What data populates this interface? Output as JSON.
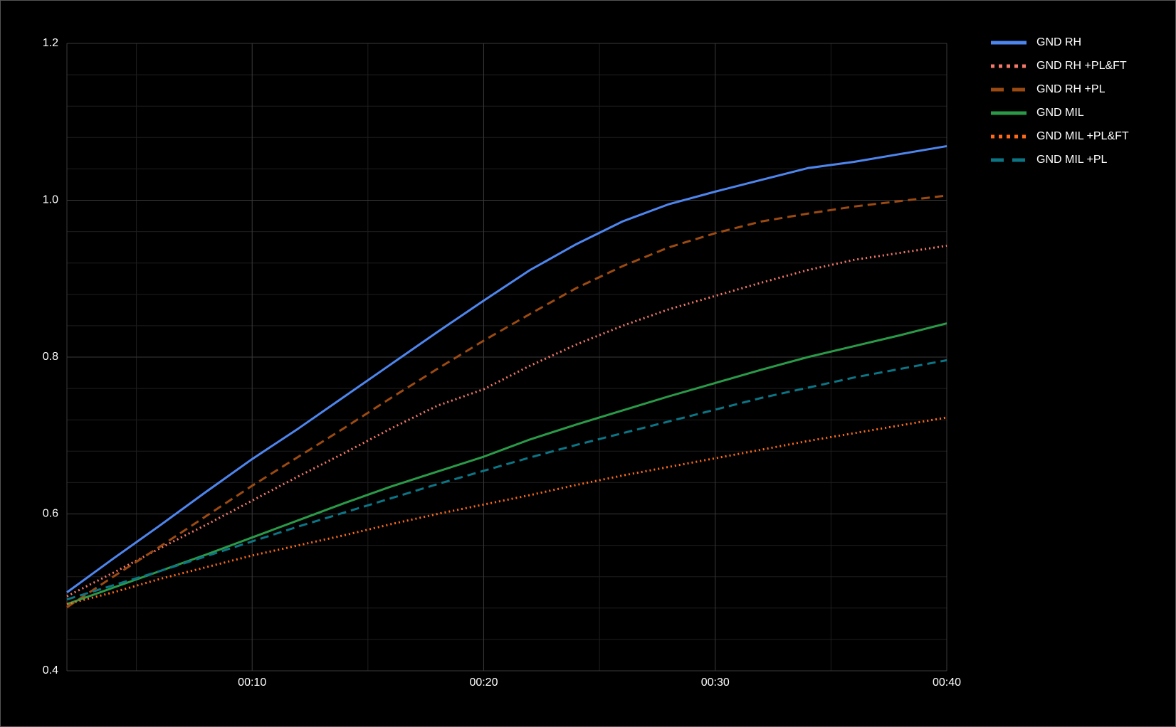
{
  "chart_data": {
    "type": "line",
    "x": [
      2,
      4,
      6,
      8,
      10,
      12,
      14,
      16,
      18,
      20,
      22,
      24,
      26,
      28,
      30,
      32,
      34,
      36,
      38,
      40
    ],
    "xlim": [
      2,
      40
    ],
    "xticks": [
      {
        "value": 10,
        "label": "00:10"
      },
      {
        "value": 20,
        "label": "00:20"
      },
      {
        "value": 30,
        "label": "00:30"
      },
      {
        "value": 40,
        "label": "00:40"
      }
    ],
    "xminorticks": [
      5,
      15,
      25,
      35
    ],
    "ylim": [
      0.4,
      1.2
    ],
    "yticks": [
      0.4,
      0.6,
      0.8,
      {
        "value": 1,
        "label": "1.0"
      },
      1.2
    ],
    "yminorticks": [
      0.44,
      0.48,
      0.52,
      0.56,
      0.64,
      0.68,
      0.72,
      0.76,
      0.84,
      0.88,
      0.92,
      0.96,
      1.04,
      1.08,
      1.12,
      1.16
    ],
    "grid": true,
    "legend": "right",
    "series": [
      {
        "name": "GND RH",
        "color": "#4e86ef",
        "dash": "solid",
        "values": [
          0.5,
          0.543,
          0.585,
          0.628,
          0.67,
          0.709,
          0.75,
          0.791,
          0.832,
          0.872,
          0.911,
          0.944,
          0.973,
          0.995,
          1.011,
          1.026,
          1.041,
          1.049,
          1.059,
          1.069
        ]
      },
      {
        "name": "GND RH +PL&FT",
        "color": "#f5786a",
        "dash": "dotted",
        "values": [
          0.495,
          0.525,
          0.556,
          0.586,
          0.617,
          0.648,
          0.678,
          0.709,
          0.738,
          0.759,
          0.789,
          0.816,
          0.84,
          0.861,
          0.878,
          0.895,
          0.911,
          0.924,
          0.933,
          0.942
        ]
      },
      {
        "name": "GND RH +PL",
        "color": "#9c4a12",
        "dash": "dashed",
        "values": [
          0.481,
          0.52,
          0.558,
          0.597,
          0.636,
          0.673,
          0.71,
          0.748,
          0.785,
          0.821,
          0.855,
          0.888,
          0.916,
          0.94,
          0.958,
          0.973,
          0.983,
          0.992,
          0.999,
          1.006
        ]
      },
      {
        "name": "GND MIL",
        "color": "#2a9a48",
        "dash": "solid",
        "values": [
          0.485,
          0.506,
          0.527,
          0.548,
          0.57,
          0.592,
          0.614,
          0.635,
          0.654,
          0.673,
          0.695,
          0.714,
          0.732,
          0.75,
          0.767,
          0.784,
          0.8,
          0.814,
          0.828,
          0.843
        ]
      },
      {
        "name": "GND MIL +PL&FT",
        "color": "#ff6a1a",
        "dash": "dotted",
        "values": [
          0.485,
          0.5,
          0.517,
          0.532,
          0.547,
          0.56,
          0.573,
          0.587,
          0.6,
          0.612,
          0.624,
          0.637,
          0.649,
          0.66,
          0.671,
          0.682,
          0.693,
          0.703,
          0.713,
          0.723
        ]
      },
      {
        "name": "GND MIL +PL",
        "color": "#0b7585",
        "dash": "dashed",
        "values": [
          0.491,
          0.509,
          0.527,
          0.546,
          0.565,
          0.584,
          0.602,
          0.62,
          0.638,
          0.655,
          0.672,
          0.688,
          0.703,
          0.718,
          0.733,
          0.748,
          0.761,
          0.774,
          0.785,
          0.796
        ]
      }
    ]
  }
}
